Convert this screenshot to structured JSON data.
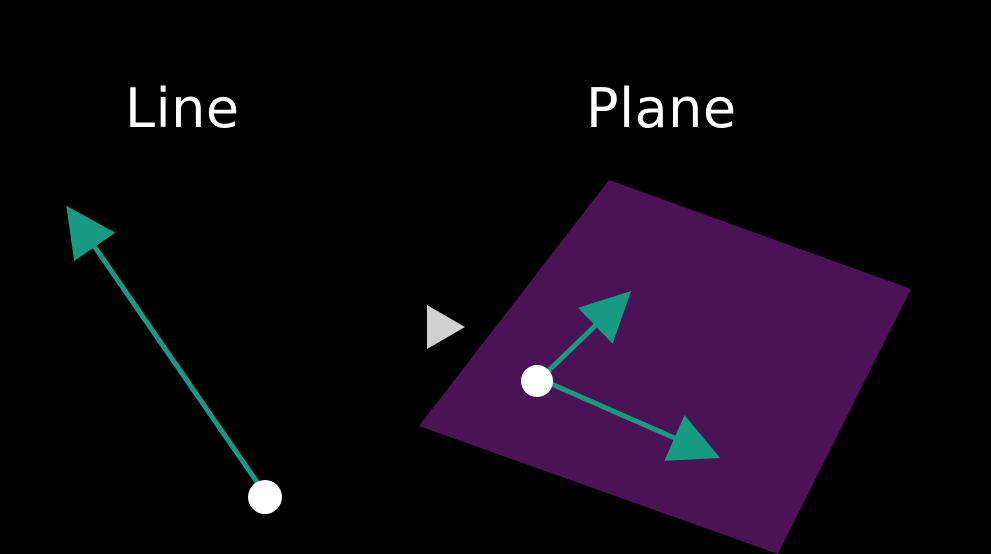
{
  "titles": {
    "line": "Line",
    "plane": "Plane"
  },
  "controls": {
    "play_icon": "play-icon"
  },
  "colors": {
    "background": "#000000",
    "plane": "#4b1356",
    "arrow": "#159b82",
    "point": "#ffffff",
    "play": "#d0d0d0",
    "text": "#ffffff"
  }
}
